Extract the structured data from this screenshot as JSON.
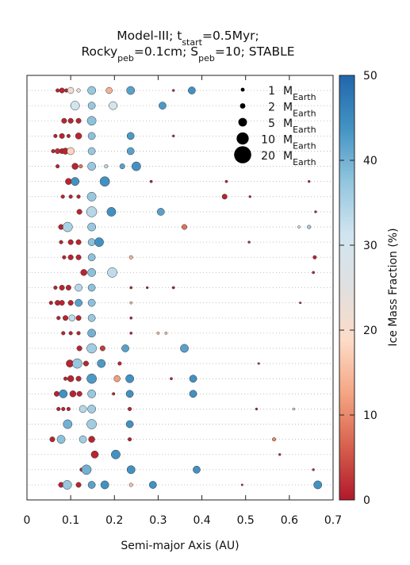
{
  "chart_data": {
    "type": "scatter",
    "title_line1": "Model-III; t_start=0.5Myr;",
    "title_line2": "Rocky_peb=0.1cm; S_peb=10; STABLE",
    "xlabel": "Semi-major Axis (AU)",
    "colorbar_label": "Ice Mass Fraction (%)",
    "xlim": [
      0,
      0.7
    ],
    "xticks": [
      "0",
      "0.1",
      "0.2",
      "0.3",
      "0.4",
      "0.5",
      "0.6",
      "0.7"
    ],
    "colorbar_range": [
      0,
      50
    ],
    "colorbar_ticks": [
      "0",
      "10",
      "20",
      "30",
      "40",
      "50"
    ],
    "colormap": [
      "#b2182b",
      "#d6604d",
      "#f4a582",
      "#fddbc7",
      "#e0e0e0",
      "#d1e5f0",
      "#92c5de",
      "#4393c3",
      "#2166ac"
    ],
    "size_legend": [
      {
        "label": "1",
        "unit": "M",
        "sub": "Earth",
        "mass": 1
      },
      {
        "label": "2",
        "unit": "M",
        "sub": "Earth",
        "mass": 2
      },
      {
        "label": "5",
        "unit": "M",
        "sub": "Earth",
        "mass": 5
      },
      {
        "label": "10",
        "unit": "M",
        "sub": "Earth",
        "mass": 10
      },
      {
        "label": "20",
        "unit": "M",
        "sub": "Earth",
        "mass": 20
      }
    ],
    "rows": [
      [
        [
          0.07,
          1,
          1
        ],
        [
          0.08,
          1,
          2
        ],
        [
          0.09,
          1,
          1
        ],
        [
          0.1,
          22,
          3
        ],
        [
          0.118,
          22,
          1
        ],
        [
          0.148,
          37,
          5
        ],
        [
          0.188,
          14,
          3
        ],
        [
          0.237,
          42,
          5
        ],
        [
          0.335,
          1,
          0.4
        ],
        [
          0.377,
          44,
          4
        ]
      ],
      [
        [
          0.11,
          31,
          6
        ],
        [
          0.148,
          37,
          4
        ],
        [
          0.197,
          30,
          5
        ],
        [
          0.31,
          43,
          4
        ]
      ],
      [
        [
          0.085,
          1,
          2
        ],
        [
          0.1,
          1,
          2
        ],
        [
          0.118,
          1,
          2
        ],
        [
          0.148,
          38,
          6
        ]
      ],
      [
        [
          0.065,
          1,
          1
        ],
        [
          0.08,
          1,
          2
        ],
        [
          0.095,
          1,
          1
        ],
        [
          0.118,
          1,
          3
        ],
        [
          0.148,
          38,
          4
        ],
        [
          0.237,
          43,
          4
        ],
        [
          0.335,
          1,
          0.4
        ]
      ],
      [
        [
          0.06,
          1,
          1
        ],
        [
          0.07,
          2,
          2
        ],
        [
          0.08,
          1,
          2
        ],
        [
          0.088,
          1,
          3
        ],
        [
          0.1,
          18,
          4
        ],
        [
          0.148,
          37,
          4
        ],
        [
          0.237,
          42,
          4
        ]
      ],
      [
        [
          0.07,
          1,
          1
        ],
        [
          0.11,
          1,
          3
        ],
        [
          0.123,
          8,
          1
        ],
        [
          0.148,
          37,
          5
        ],
        [
          0.181,
          33,
          1
        ],
        [
          0.218,
          42,
          2
        ],
        [
          0.25,
          44,
          6
        ]
      ],
      [
        [
          0.095,
          1,
          3
        ],
        [
          0.11,
          44,
          5
        ],
        [
          0.178,
          44,
          7
        ],
        [
          0.284,
          1,
          0.5
        ],
        [
          0.456,
          1,
          0.5
        ],
        [
          0.645,
          1,
          0.4
        ]
      ],
      [
        [
          0.082,
          1,
          1
        ],
        [
          0.1,
          1,
          1
        ],
        [
          0.118,
          1,
          1
        ],
        [
          0.148,
          37,
          6
        ],
        [
          0.452,
          1,
          2
        ],
        [
          0.51,
          1,
          0.4
        ]
      ],
      [
        [
          0.12,
          1,
          2
        ],
        [
          0.148,
          34,
          8
        ],
        [
          0.193,
          44,
          6
        ],
        [
          0.306,
          42,
          4
        ],
        [
          0.66,
          1,
          0.4
        ]
      ],
      [
        [
          0.078,
          1,
          2
        ],
        [
          0.093,
          35,
          7
        ],
        [
          0.148,
          37,
          5
        ],
        [
          0.36,
          8,
          2
        ],
        [
          0.622,
          30,
          0.5
        ],
        [
          0.645,
          36,
          1
        ]
      ],
      [
        [
          0.078,
          1,
          1
        ],
        [
          0.1,
          1,
          2
        ],
        [
          0.118,
          1,
          2
        ],
        [
          0.148,
          38,
          4
        ],
        [
          0.165,
          44,
          6
        ],
        [
          0.508,
          1,
          0.4
        ]
      ],
      [
        [
          0.085,
          1,
          1
        ],
        [
          0.1,
          1,
          2
        ],
        [
          0.118,
          1,
          2
        ],
        [
          0.148,
          38,
          4
        ],
        [
          0.238,
          14,
          1
        ],
        [
          0.658,
          1,
          1
        ]
      ],
      [
        [
          0.13,
          1,
          3
        ],
        [
          0.148,
          38,
          5
        ],
        [
          0.195,
          33,
          7
        ],
        [
          0.655,
          1,
          0.5
        ]
      ],
      [
        [
          0.065,
          1,
          1
        ],
        [
          0.08,
          1,
          2
        ],
        [
          0.095,
          1,
          2
        ],
        [
          0.118,
          34,
          4
        ],
        [
          0.148,
          38,
          4
        ],
        [
          0.238,
          1,
          0.5
        ],
        [
          0.275,
          1,
          0.4
        ],
        [
          0.335,
          1,
          0.5
        ]
      ],
      [
        [
          0.055,
          1,
          1
        ],
        [
          0.07,
          1,
          2
        ],
        [
          0.08,
          1,
          2
        ],
        [
          0.1,
          1,
          2
        ],
        [
          0.118,
          42,
          4
        ],
        [
          0.148,
          38,
          4
        ],
        [
          0.238,
          16,
          0.5
        ],
        [
          0.625,
          1,
          0.3
        ]
      ],
      [
        [
          0.072,
          1,
          1
        ],
        [
          0.088,
          1,
          2
        ],
        [
          0.103,
          33,
          3
        ],
        [
          0.118,
          1,
          2
        ],
        [
          0.148,
          37,
          4
        ],
        [
          0.238,
          1,
          0.5
        ]
      ],
      [
        [
          0.083,
          1,
          1
        ],
        [
          0.1,
          1,
          1
        ],
        [
          0.118,
          1,
          1
        ],
        [
          0.148,
          40,
          5
        ],
        [
          0.238,
          1,
          0.5
        ],
        [
          0.3,
          16,
          0.5
        ],
        [
          0.318,
          16,
          0.5
        ]
      ],
      [
        [
          0.12,
          1,
          2
        ],
        [
          0.148,
          36,
          7
        ],
        [
          0.173,
          3,
          2
        ],
        [
          0.225,
          42,
          4
        ],
        [
          0.36,
          42,
          5
        ]
      ],
      [
        [
          0.098,
          1,
          4
        ],
        [
          0.115,
          37,
          7
        ],
        [
          0.135,
          1,
          2
        ],
        [
          0.17,
          43,
          5
        ],
        [
          0.212,
          1,
          1
        ],
        [
          0.53,
          1,
          0.3
        ]
      ],
      [
        [
          0.088,
          1,
          1
        ],
        [
          0.1,
          1,
          3
        ],
        [
          0.118,
          1,
          2
        ],
        [
          0.148,
          43,
          7
        ],
        [
          0.206,
          12,
          3
        ],
        [
          0.235,
          44,
          5
        ],
        [
          0.33,
          1,
          0.5
        ],
        [
          0.38,
          44,
          4
        ]
      ],
      [
        [
          0.068,
          1,
          2
        ],
        [
          0.083,
          44,
          5
        ],
        [
          0.105,
          1,
          3
        ],
        [
          0.12,
          1,
          2
        ],
        [
          0.148,
          37,
          5
        ],
        [
          0.198,
          1,
          0.6
        ],
        [
          0.235,
          44,
          4
        ],
        [
          0.38,
          44,
          4
        ]
      ],
      [
        [
          0.072,
          1,
          1
        ],
        [
          0.083,
          1,
          1
        ],
        [
          0.095,
          1,
          1
        ],
        [
          0.128,
          34,
          4
        ],
        [
          0.148,
          36,
          5
        ],
        [
          0.235,
          1,
          1
        ],
        [
          0.525,
          1,
          0.4
        ],
        [
          0.61,
          28,
          0.4
        ]
      ],
      [
        [
          0.093,
          40,
          6
        ],
        [
          0.148,
          36,
          7
        ],
        [
          0.235,
          44,
          4
        ]
      ],
      [
        [
          0.058,
          1,
          2
        ],
        [
          0.078,
          38,
          5
        ],
        [
          0.128,
          36,
          4
        ],
        [
          0.148,
          1,
          3
        ],
        [
          0.235,
          1,
          1
        ],
        [
          0.565,
          10,
          1
        ]
      ],
      [
        [
          0.155,
          1,
          4
        ],
        [
          0.203,
          44,
          6
        ],
        [
          0.578,
          1,
          0.4
        ]
      ],
      [
        [
          0.125,
          1,
          1
        ],
        [
          0.136,
          40,
          7
        ],
        [
          0.238,
          44,
          5
        ],
        [
          0.388,
          44,
          4
        ],
        [
          0.655,
          1,
          0.4
        ]
      ],
      [
        [
          0.078,
          1,
          2
        ],
        [
          0.092,
          37,
          6
        ],
        [
          0.118,
          1,
          2
        ],
        [
          0.148,
          42,
          4
        ],
        [
          0.178,
          44,
          5
        ],
        [
          0.238,
          16,
          1
        ],
        [
          0.288,
          44,
          4
        ],
        [
          0.492,
          1,
          0.3
        ],
        [
          0.665,
          44,
          5
        ]
      ]
    ]
  }
}
